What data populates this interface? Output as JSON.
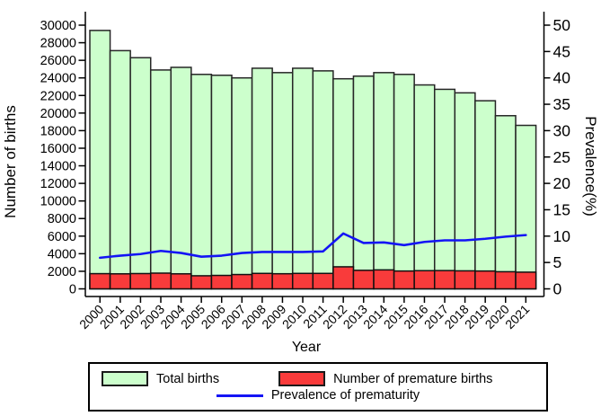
{
  "chart_data": {
    "type": "bar",
    "subtype": "bar-line-combo",
    "title": "",
    "xlabel": "Year",
    "categories": [
      "2000",
      "2001",
      "2002",
      "2003",
      "2004",
      "2005",
      "2006",
      "2007",
      "2008",
      "2009",
      "2010",
      "2011",
      "2012",
      "2013",
      "2014",
      "2015",
      "2016",
      "2017",
      "2018",
      "2019",
      "2020",
      "2021"
    ],
    "series": [
      {
        "name": "Total births",
        "type": "bar",
        "axis": "left",
        "color": "#ccffcc",
        "values": [
          29400,
          27100,
          26300,
          24900,
          25200,
          24400,
          24300,
          24000,
          25100,
          24600,
          25100,
          24800,
          23900,
          24200,
          24600,
          24400,
          23200,
          22700,
          22300,
          21400,
          19700,
          18600
        ]
      },
      {
        "name": "Number of premature births",
        "type": "bar",
        "axis": "left",
        "color": "#f93b3b",
        "values": [
          1730,
          1710,
          1740,
          1790,
          1710,
          1490,
          1530,
          1630,
          1760,
          1720,
          1760,
          1760,
          2510,
          2110,
          2160,
          2030,
          2070,
          2080,
          2050,
          2030,
          1950,
          1900
        ]
      },
      {
        "name": "Prevalence of prematurity",
        "type": "line",
        "axis": "right",
        "color": "#1414f5",
        "values": [
          5.9,
          6.3,
          6.6,
          7.2,
          6.8,
          6.1,
          6.3,
          6.8,
          7.0,
          7.0,
          7.0,
          7.1,
          10.5,
          8.7,
          8.8,
          8.3,
          8.9,
          9.2,
          9.2,
          9.5,
          9.9,
          10.2
        ]
      }
    ],
    "left_axis": {
      "label": "Number of births",
      "min": 0,
      "max": 30000,
      "ticks": [
        0,
        2000,
        4000,
        6000,
        8000,
        10000,
        12000,
        14000,
        16000,
        18000,
        20000,
        22000,
        24000,
        26000,
        28000,
        30000
      ]
    },
    "right_axis": {
      "label": "Prevalence(%)",
      "min": 0,
      "max": 50,
      "ticks": [
        0,
        5,
        10,
        15,
        20,
        25,
        30,
        35,
        40,
        45,
        50
      ]
    },
    "grid": false,
    "legend_position": "bottom",
    "bar_border_color": "#262626",
    "axis_color": "#000000"
  }
}
